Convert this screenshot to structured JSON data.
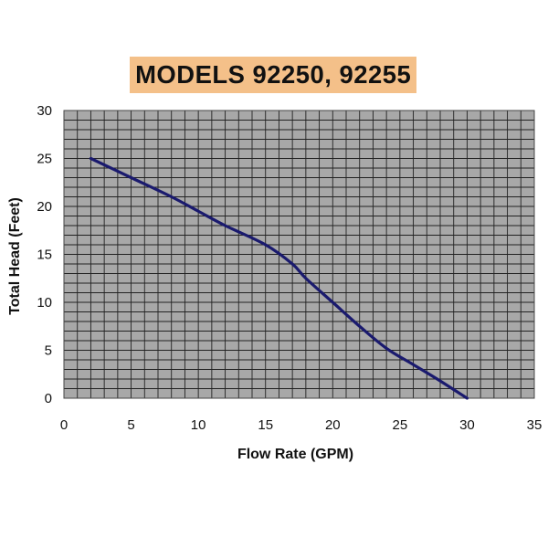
{
  "chart_data": {
    "type": "line",
    "title": "MODELS 92250, 92255",
    "xlabel": "Flow Rate (GPM)",
    "ylabel": "Total Head (Feet)",
    "xlim": [
      0,
      35
    ],
    "ylim": [
      0,
      30
    ],
    "x_ticks": [
      "0",
      "5",
      "10",
      "15",
      "20",
      "25",
      "30",
      "35"
    ],
    "y_ticks": [
      "0",
      "5",
      "10",
      "15",
      "20",
      "25",
      "30"
    ],
    "grid": true,
    "series": [
      {
        "x": [
          2,
          5,
          8,
          10,
          12,
          15,
          17,
          18,
          20,
          22,
          24,
          26,
          28,
          30
        ],
        "y": [
          25,
          23,
          21,
          19.5,
          18,
          16,
          14,
          12.5,
          10,
          7.5,
          5.2,
          3.5,
          1.8,
          0
        ]
      }
    ],
    "colors": {
      "line": "#1a1a6e",
      "plot_background": "#a8a8a8",
      "grid": "#222222",
      "title_background": "#f4c089"
    }
  }
}
